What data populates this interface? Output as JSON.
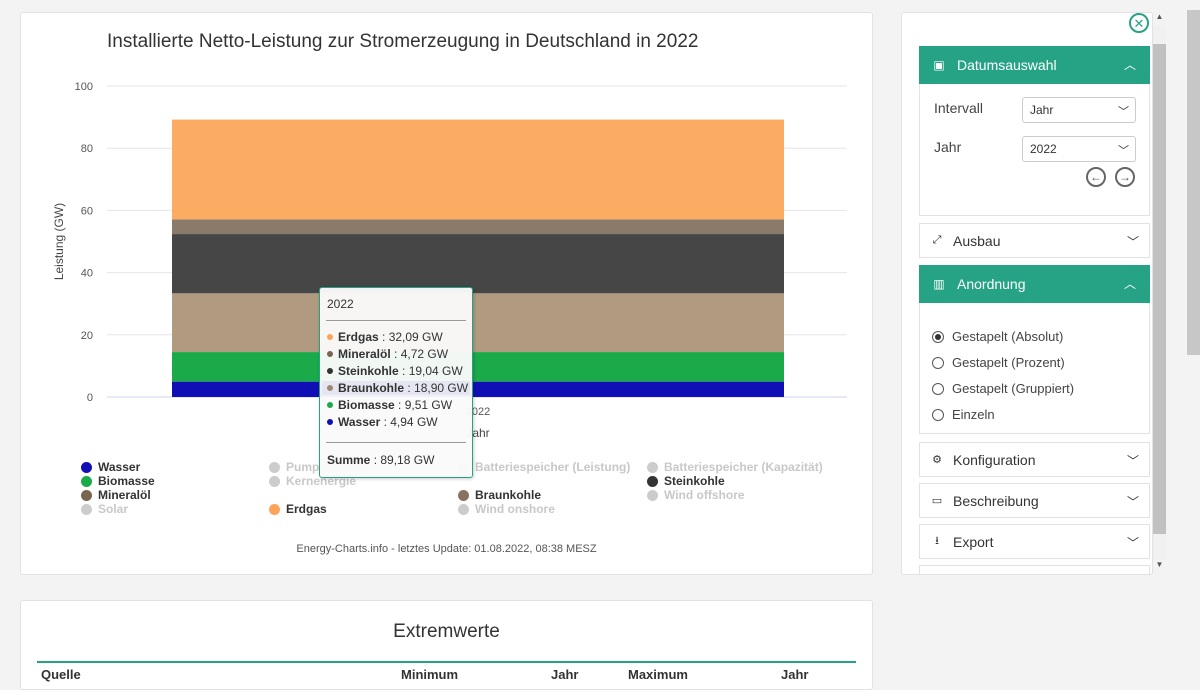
{
  "chart": {
    "title": "Installierte Netto-Leistung zur Stromerzeugung in Deutschland in 2022",
    "credits": "Energy-Charts.info - letztes Update: 01.08.2022, 08:38 MESZ"
  },
  "chart_data": {
    "type": "bar",
    "stacked": true,
    "title": "Installierte Netto-Leistung zur Stromerzeugung in Deutschland in 2022",
    "ylabel": "Leistung (GW)",
    "xlabel": "Jahr",
    "categories": [
      "2022"
    ],
    "ylim": [
      0,
      100
    ],
    "yticks": [
      0,
      20,
      40,
      60,
      80,
      100
    ],
    "grid": true,
    "legend_position": "bottom",
    "series": [
      {
        "name": "Wasser",
        "values": [
          4.94
        ],
        "color": "#0f0fb5",
        "visible": true
      },
      {
        "name": "Biomasse",
        "values": [
          9.51
        ],
        "color": "#1aaa4a",
        "visible": true
      },
      {
        "name": "Braunkohle",
        "values": [
          18.9
        ],
        "color": "#b09a80",
        "visible": true
      },
      {
        "name": "Steinkohle",
        "values": [
          19.04
        ],
        "color": "#464646",
        "visible": true
      },
      {
        "name": "Mineralöl",
        "values": [
          4.72
        ],
        "color": "#8a7a6a",
        "visible": true
      },
      {
        "name": "Erdgas",
        "values": [
          32.09
        ],
        "color": "#fcac62",
        "visible": true
      }
    ],
    "legend": [
      {
        "name": "Wasser",
        "color": "#0f0fb5",
        "visible": true
      },
      {
        "name": "Biomasse",
        "color": "#1aaa4a",
        "visible": true
      },
      {
        "name": "Mineralöl",
        "color": "#7a6450",
        "visible": true
      },
      {
        "name": "Solar",
        "color": "#cccccc",
        "visible": false
      },
      {
        "name": "Pumpspeicher",
        "color": "#cccccc",
        "visible": false
      },
      {
        "name": "Kernenergie",
        "color": "#cccccc",
        "visible": false
      },
      {
        "name": "Erdgas",
        "color": "#fca35a",
        "visible": true
      },
      {
        "name": "Batteriespeicher (Leistung)",
        "color": "#cccccc",
        "visible": false
      },
      {
        "name": "Braunkohle",
        "color": "#8a7260",
        "visible": true
      },
      {
        "name": "Wind onshore",
        "color": "#cccccc",
        "visible": false
      },
      {
        "name": "Batteriespeicher (Kapazität)",
        "color": "#cccccc",
        "visible": false
      },
      {
        "name": "Steinkohle",
        "color": "#333333",
        "visible": true
      },
      {
        "name": "Wind offshore",
        "color": "#cccccc",
        "visible": false
      }
    ],
    "tooltip": {
      "header": "2022",
      "rows": [
        {
          "name": "Erdgas",
          "value": ": 32,09 GW",
          "color": "#fca35a"
        },
        {
          "name": "Mineralöl",
          "value": ": 4,72 GW",
          "color": "#7a6450"
        },
        {
          "name": "Steinkohle",
          "value": ": 19,04 GW",
          "color": "#333333"
        },
        {
          "name": "Braunkohle",
          "value": ": 18,90 GW",
          "color": "#a08870"
        },
        {
          "name": "Biomasse",
          "value": ": 9,51 GW",
          "color": "#1aaa4a"
        },
        {
          "name": "Wasser",
          "value": ": 4,94 GW",
          "color": "#0f0fb5"
        }
      ],
      "highlighted": "Braunkohle",
      "sum_label": "Summe",
      "sum_value": ": 89,18 GW"
    }
  },
  "extremwerte": {
    "title": "Extremwerte",
    "headers": [
      "Quelle",
      "Minimum",
      "Jahr",
      "Maximum",
      "Jahr"
    ]
  },
  "sidebar": {
    "close_icon": "close-circle-icon",
    "datumsauswahl": {
      "title": "Datumsauswahl",
      "icon": "calendar-icon",
      "intervall_label": "Intervall",
      "intervall_value": "Jahr",
      "jahr_label": "Jahr",
      "jahr_value": "2022"
    },
    "ausbau": {
      "title": "Ausbau",
      "icon": "expand-icon"
    },
    "anordnung": {
      "title": "Anordnung",
      "icon": "chart-icon",
      "options": [
        {
          "label": "Gestapelt (Absolut)",
          "checked": true
        },
        {
          "label": "Gestapelt (Prozent)",
          "checked": false
        },
        {
          "label": "Gestapelt (Gruppiert)",
          "checked": false
        },
        {
          "label": "Einzeln",
          "checked": false
        }
      ]
    },
    "konfiguration": {
      "title": "Konfiguration",
      "icon": "gears-icon"
    },
    "beschreibung": {
      "title": "Beschreibung",
      "icon": "note-icon"
    },
    "export": {
      "title": "Export",
      "icon": "download-icon"
    }
  }
}
